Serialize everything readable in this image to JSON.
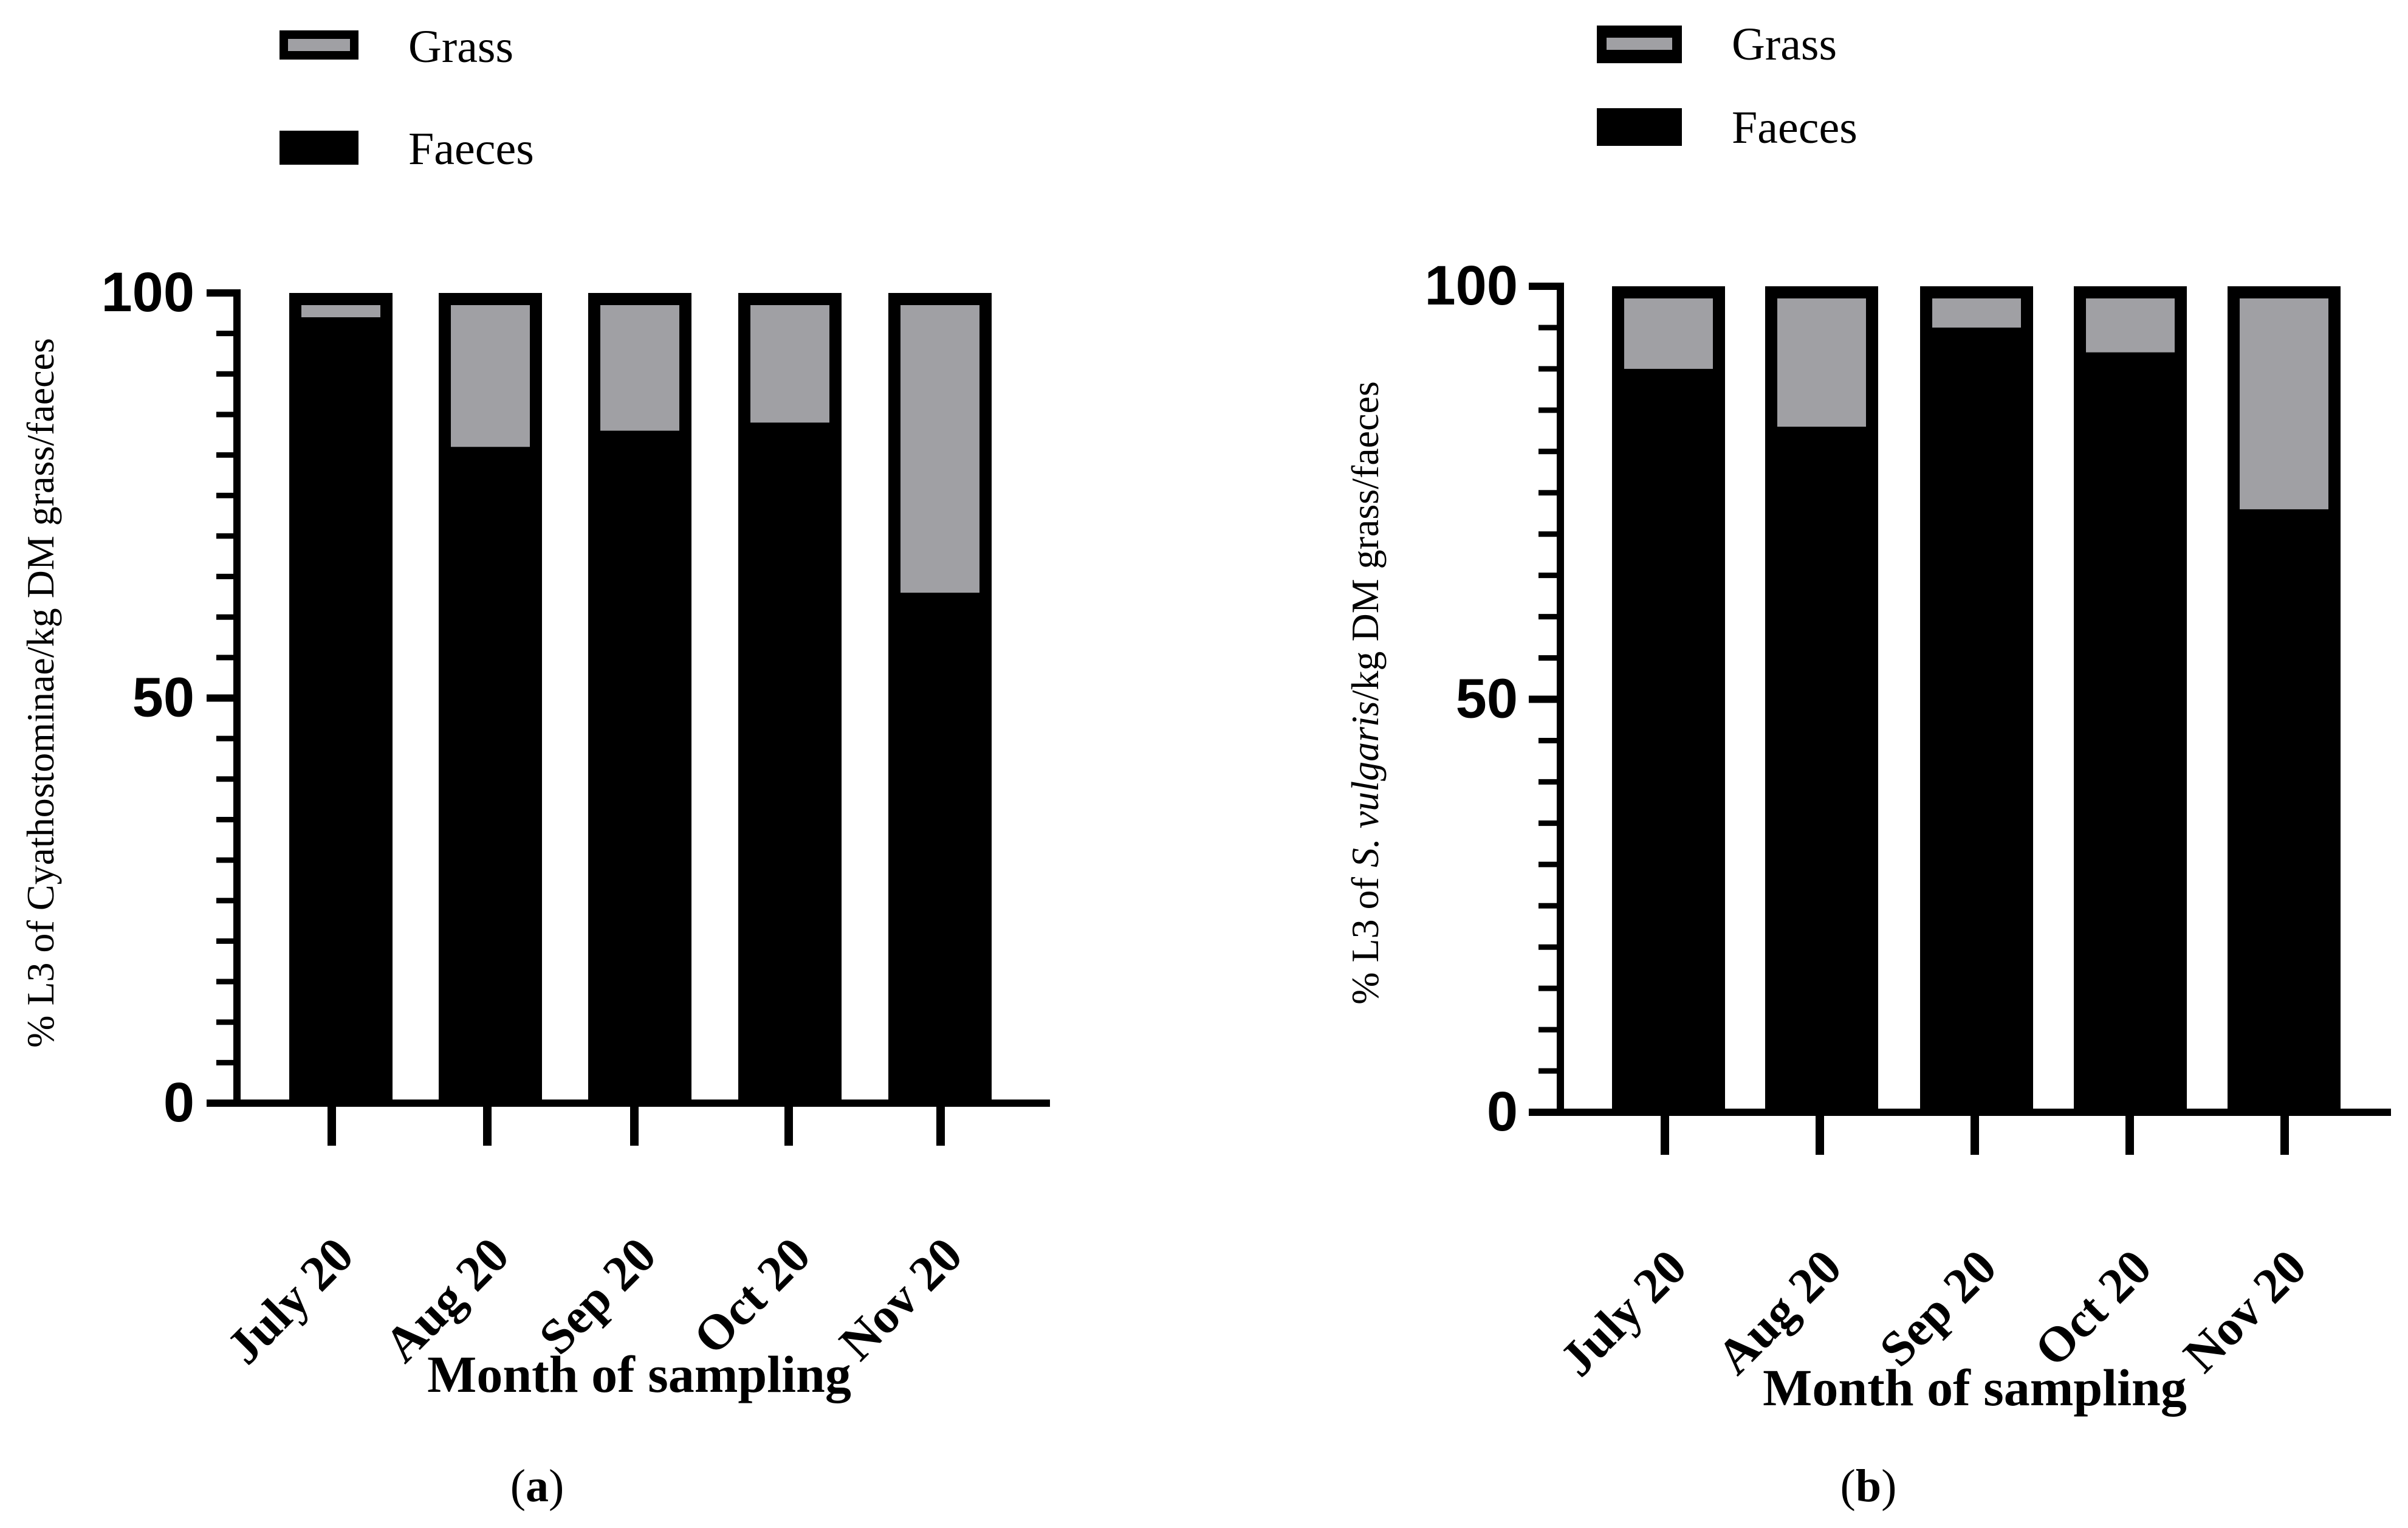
{
  "legend_a": {
    "grass": "Grass",
    "faeces": "Faeces"
  },
  "legend_b": {
    "grass": "Grass",
    "faeces": "Faeces"
  },
  "panel_a": {
    "caption_letter": "a"
  },
  "panel_b": {
    "caption_letter": "b"
  },
  "ylabel_b": {
    "prefix": "% L3 of ",
    "italic": "S. vulgaris",
    "suffix": "/kg DM grass/faeces"
  },
  "colors": {
    "faeces": "#000000",
    "grass": "#a0a0a4",
    "background": "#ffffff"
  },
  "chart_data": [
    {
      "type": "bar",
      "stacked": true,
      "title": "",
      "categories": [
        "July 20",
        "Aug 20",
        "Sep 20",
        "Oct 20",
        "Nov 20"
      ],
      "series": [
        {
          "name": "Faeces",
          "values": [
            97,
            81,
            83,
            84,
            63
          ]
        },
        {
          "name": "Grass",
          "values": [
            3,
            19,
            17,
            16,
            37
          ]
        }
      ],
      "xlabel": "Month of sampling",
      "ylabel": "% L3 of Cyathostominae/kg DM grass/faeces",
      "ylim": [
        0,
        100
      ],
      "yticks": [
        0,
        50,
        100
      ],
      "legend": [
        "Grass",
        "Faeces"
      ],
      "legend_position": "top-left",
      "caption": "(a)"
    },
    {
      "type": "bar",
      "stacked": true,
      "title": "",
      "categories": [
        "July 20",
        "Aug 20",
        "Sep 20",
        "Oct 20",
        "Nov 20"
      ],
      "series": [
        {
          "name": "Faeces",
          "values": [
            90,
            83,
            95,
            92,
            73
          ]
        },
        {
          "name": "Grass",
          "values": [
            10,
            17,
            5,
            8,
            27
          ]
        }
      ],
      "xlabel": "Month of sampling",
      "ylabel": "% L3 of S. vulgaris/kg DM grass/faeces",
      "ylim": [
        0,
        100
      ],
      "yticks": [
        0,
        50,
        100
      ],
      "legend": [
        "Grass",
        "Faeces"
      ],
      "legend_position": "top-left",
      "caption": "(b)"
    }
  ]
}
